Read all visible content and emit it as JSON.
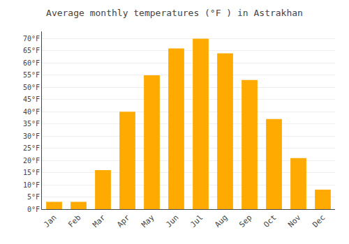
{
  "chart_data": {
    "type": "bar",
    "title": "Average monthly temperatures (°F ) in Astrakhan",
    "categories": [
      "Jan",
      "Feb",
      "Mar",
      "Apr",
      "May",
      "Jun",
      "Jul",
      "Aug",
      "Sep",
      "Oct",
      "Nov",
      "Dec"
    ],
    "values": [
      3,
      3,
      16,
      40,
      55,
      66,
      70,
      64,
      53,
      37,
      21,
      8
    ],
    "color": "#FFAA00",
    "ylim": [
      0,
      73
    ],
    "yticks": [
      {
        "value": 0,
        "label": "0°F"
      },
      {
        "value": 5,
        "label": "5°F"
      },
      {
        "value": 10,
        "label": "10°F"
      },
      {
        "value": 15,
        "label": "15°F"
      },
      {
        "value": 20,
        "label": "20°F"
      },
      {
        "value": 25,
        "label": "25°F"
      },
      {
        "value": 30,
        "label": "30°F"
      },
      {
        "value": 35,
        "label": "35°F"
      },
      {
        "value": 40,
        "label": "40°F"
      },
      {
        "value": 45,
        "label": "45°F"
      },
      {
        "value": 50,
        "label": "50°F"
      },
      {
        "value": 55,
        "label": "55°F"
      },
      {
        "value": 60,
        "label": "60°F"
      },
      {
        "value": 65,
        "label": "65°F"
      },
      {
        "value": 70,
        "label": "70°F"
      }
    ],
    "grid": true
  }
}
